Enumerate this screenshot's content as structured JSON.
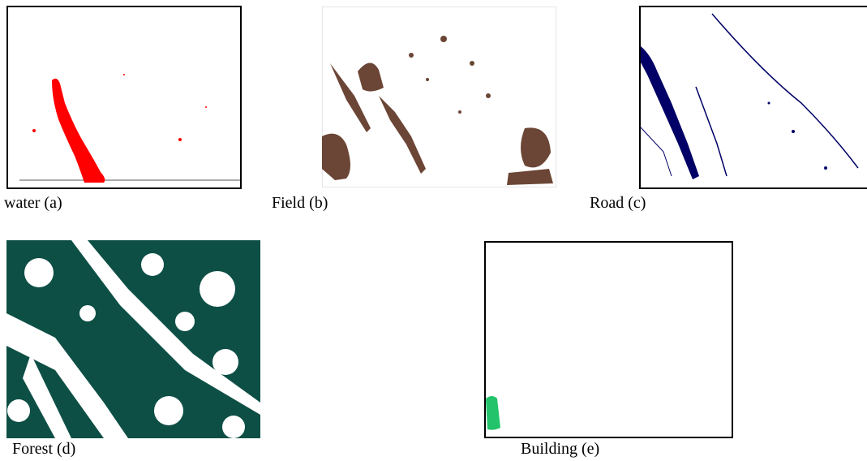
{
  "figures": [
    {
      "caption": "water (a)"
    },
    {
      "caption": "Field (b)"
    },
    {
      "caption": "Road (c)"
    },
    {
      "caption": "Forest (d)"
    },
    {
      "caption": "Building (e)"
    }
  ]
}
